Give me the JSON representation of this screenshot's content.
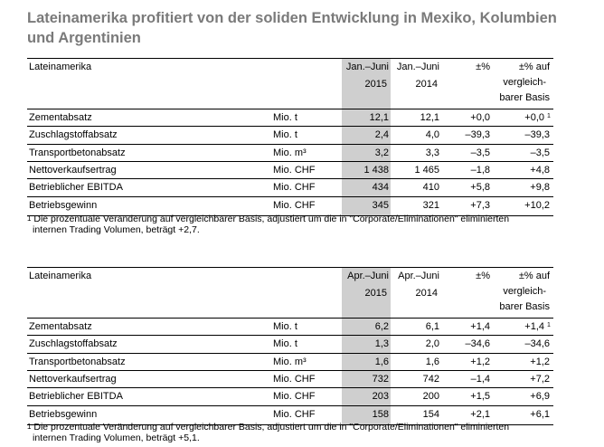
{
  "title": "Lateinamerika profitiert von der soliden Entwicklung in Mexiko, Kolumbien und Argentinien",
  "tables": [
    {
      "section_label": "Lateinamerika",
      "col_period_1": "Jan.–Juni",
      "col_period_2": "Jan.–Juni",
      "col_year_1": "2015",
      "col_year_2": "2014",
      "col_change": "±%",
      "col_lfl_1": "±% auf",
      "col_lfl_2": "vergleich-",
      "col_lfl_3": "barer Basis",
      "rows": [
        {
          "label": "Zementabsatz",
          "unit": "Mio. t",
          "v1": "12,1",
          "v2": "12,1",
          "chg": "+0,0",
          "lfl": "+0,0",
          "fn": "1"
        },
        {
          "label": "Zuschlagstoffabsatz",
          "unit": "Mio. t",
          "v1": "2,4",
          "v2": "4,0",
          "chg": "–39,3",
          "lfl": "–39,3",
          "fn": ""
        },
        {
          "label": "Transportbetonabsatz",
          "unit": "Mio. m³",
          "v1": "3,2",
          "v2": "3,3",
          "chg": "–3,5",
          "lfl": "–3,5",
          "fn": ""
        },
        {
          "label": "Nettoverkaufsertrag",
          "unit": "Mio. CHF",
          "v1": "1 438",
          "v2": "1 465",
          "chg": "–1,8",
          "lfl": "+4,8",
          "fn": ""
        },
        {
          "label": "Betrieblicher EBITDA",
          "unit": "Mio. CHF",
          "v1": "434",
          "v2": "410",
          "chg": "+5,8",
          "lfl": "+9,8",
          "fn": ""
        },
        {
          "label": "Betriebsgewinn",
          "unit": "Mio. CHF",
          "v1": "345",
          "v2": "321",
          "chg": "+7,3",
          "lfl": "+10,2",
          "fn": ""
        }
      ],
      "footnote_mark": "1",
      "footnote_line1": "Die prozentuale Veränderung auf vergleichbarer Basis, adjustiert um die in \"Corporate/Eliminationen\" eliminierten",
      "footnote_line2": "internen Trading Volumen, beträgt +2,7."
    },
    {
      "section_label": "Lateinamerika",
      "col_period_1": "Apr.–Juni",
      "col_period_2": "Apr.–Juni",
      "col_year_1": "2015",
      "col_year_2": "2014",
      "col_change": "±%",
      "col_lfl_1": "±% auf",
      "col_lfl_2": "vergleich-",
      "col_lfl_3": "barer Basis",
      "rows": [
        {
          "label": "Zementabsatz",
          "unit": "Mio. t",
          "v1": "6,2",
          "v2": "6,1",
          "chg": "+1,4",
          "lfl": "+1,4",
          "fn": "1"
        },
        {
          "label": "Zuschlagstoffabsatz",
          "unit": "Mio. t",
          "v1": "1,3",
          "v2": "2,0",
          "chg": "–34,6",
          "lfl": "–34,6",
          "fn": ""
        },
        {
          "label": "Transportbetonabsatz",
          "unit": "Mio. m³",
          "v1": "1,6",
          "v2": "1,6",
          "chg": "+1,2",
          "lfl": "+1,2",
          "fn": ""
        },
        {
          "label": "Nettoverkaufsertrag",
          "unit": "Mio. CHF",
          "v1": "732",
          "v2": "742",
          "chg": "–1,4",
          "lfl": "+7,2",
          "fn": ""
        },
        {
          "label": "Betrieblicher EBITDA",
          "unit": "Mio. CHF",
          "v1": "203",
          "v2": "200",
          "chg": "+1,5",
          "lfl": "+6,9",
          "fn": ""
        },
        {
          "label": "Betriebsgewinn",
          "unit": "Mio. CHF",
          "v1": "158",
          "v2": "154",
          "chg": "+2,1",
          "lfl": "+6,1",
          "fn": ""
        }
      ],
      "footnote_mark": "1",
      "footnote_line1": "Die prozentuale Veränderung auf vergleichbarer Basis, adjustiert um die in \"Corporate/Eliminationen\" eliminierten",
      "footnote_line2": "internen Trading Volumen, beträgt +5,1."
    }
  ]
}
